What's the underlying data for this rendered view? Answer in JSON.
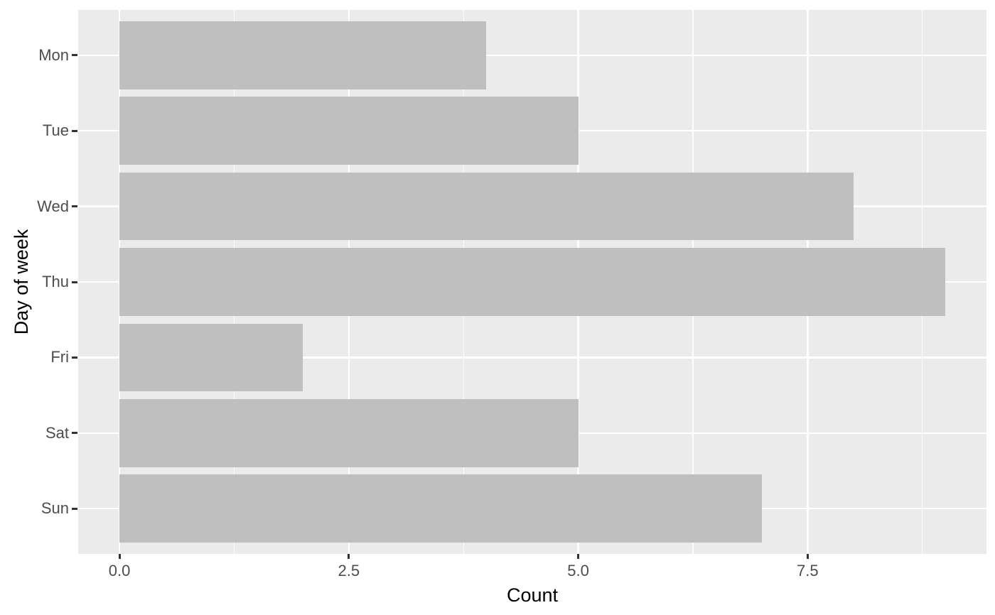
{
  "figure": {
    "background": "#FFFFFF"
  },
  "chart_data": {
    "type": "bar",
    "orientation": "horizontal",
    "title": "",
    "xlabel": "Count",
    "ylabel": "Day of week",
    "categories": [
      "Mon",
      "Tue",
      "Wed",
      "Thu",
      "Fri",
      "Sat",
      "Sun"
    ],
    "values": [
      4,
      5,
      8,
      9,
      2,
      5,
      7
    ],
    "x_ticks": [
      0.0,
      2.5,
      5.0,
      7.5
    ],
    "x_tick_labels": [
      "0.0",
      "2.5",
      "5.0",
      "7.5"
    ],
    "x_minor_ticks": [
      1.25,
      3.75,
      6.25,
      8.75
    ],
    "xlim": [
      -0.45,
      9.45
    ],
    "bar_width_fraction": 0.9,
    "grid": "on",
    "legend": "none",
    "theme": {
      "panel_background": "#EBEBEB",
      "grid_color": "#FFFFFF",
      "bar_fill": "#BFBFBF",
      "axis_text_color": "#4D4D4D",
      "axis_title_color": "#000000",
      "tick_mark_color": "#333333"
    }
  }
}
